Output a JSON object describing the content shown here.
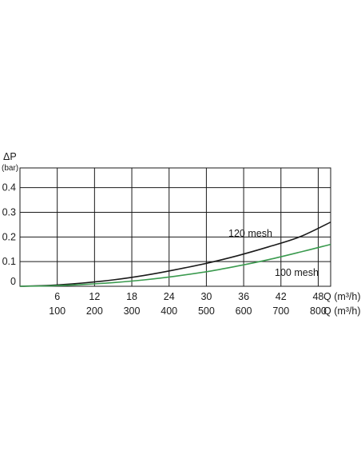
{
  "chart_data": {
    "type": "line",
    "ylabel": "ΔP",
    "ylabel_unit": "(bar)",
    "yticks": [
      "0",
      "0.1",
      "0.2",
      "0.3",
      "0.4"
    ],
    "ylim": [
      0,
      0.48
    ],
    "xlim": [
      0,
      50
    ],
    "xticks_top": [
      "6",
      "12",
      "18",
      "24",
      "30",
      "36",
      "42",
      "48"
    ],
    "xticks_top_values": [
      6,
      12,
      18,
      24,
      30,
      36,
      42,
      48
    ],
    "xlabel_top": "Q (m³/h)",
    "xticks_bottom": [
      "100",
      "200",
      "300",
      "400",
      "500",
      "600",
      "700",
      "800"
    ],
    "xlabel_bottom": "Q (m³/h)",
    "grid": true,
    "series": [
      {
        "name": "120 mesh",
        "color": "#1a1a1a",
        "x": [
          0,
          5,
          10,
          15,
          20,
          25,
          30,
          35,
          40,
          45,
          50
        ],
        "y": [
          0,
          0.004,
          0.013,
          0.026,
          0.044,
          0.067,
          0.093,
          0.124,
          0.16,
          0.2,
          0.26
        ]
      },
      {
        "name": "100 mesh",
        "color": "#3a9a4e",
        "x": [
          0,
          5,
          10,
          15,
          20,
          25,
          30,
          35,
          40,
          45,
          50
        ],
        "y": [
          0,
          0.002,
          0.007,
          0.015,
          0.026,
          0.041,
          0.059,
          0.082,
          0.108,
          0.138,
          0.17
        ]
      }
    ]
  }
}
